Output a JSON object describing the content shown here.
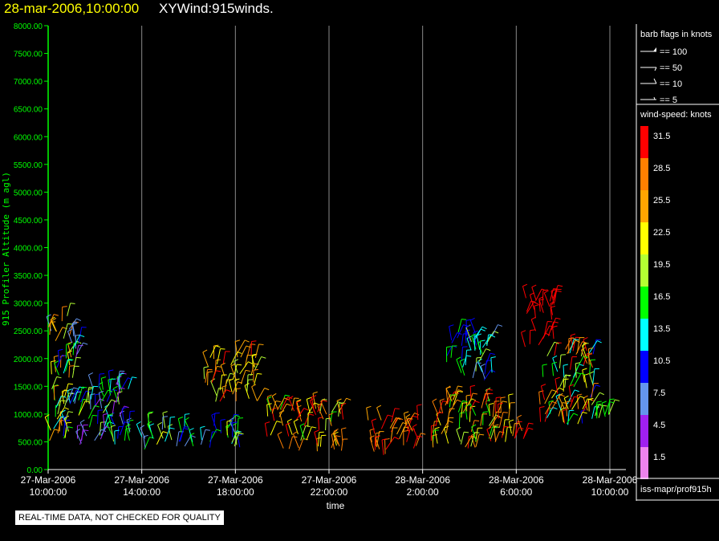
{
  "header": {
    "date_time": "28-mar-2006,10:00:00",
    "product": "XYWind:915winds."
  },
  "status_note": "REAL-TIME DATA, NOT CHECKED FOR QUALITY",
  "source_label": "iss-mapr/prof915h",
  "barb_legend": {
    "title": "barb flags in knots",
    "items": [
      "== 100",
      "== 50",
      "== 10",
      "== 5"
    ]
  },
  "speed_legend": {
    "title": "wind-speed: knots",
    "entries": [
      {
        "label": "31.5",
        "color": "#ff0000"
      },
      {
        "label": "28.5",
        "color": "#ff8000"
      },
      {
        "label": "25.5",
        "color": "#ffa500"
      },
      {
        "label": "22.5",
        "color": "#ffff00"
      },
      {
        "label": "19.5",
        "color": "#b4ff32"
      },
      {
        "label": "16.5",
        "color": "#00ff00"
      },
      {
        "label": "13.5",
        "color": "#00ffff"
      },
      {
        "label": "10.5",
        "color": "#0000ff"
      },
      {
        "label": "7.5",
        "color": "#6495ed"
      },
      {
        "label": "4.5",
        "color": "#a020f0"
      },
      {
        "label": "1.5",
        "color": "#ee82ee"
      }
    ]
  },
  "chart_data": {
    "type": "scatter",
    "title": "XYWind:915winds.",
    "xlabel": "time",
    "ylabel": "915 Profiler Altitude (m agl)",
    "ylim": [
      0,
      8000
    ],
    "xlim": [
      "27-Mar-2006 10:00:00",
      "28-Mar-2006 10:00:00"
    ],
    "yticks": [
      "0.00",
      "500.00",
      "1000.00",
      "1500.00",
      "2000.00",
      "2500.00",
      "3000.00",
      "3500.00",
      "4000.00",
      "4500.00",
      "5000.00",
      "5500.00",
      "6000.00",
      "6500.00",
      "7000.00",
      "7500.00",
      "8000.00"
    ],
    "xticks": [
      {
        "date": "27-Mar-2006",
        "time": "10:00:00"
      },
      {
        "date": "27-Mar-2006",
        "time": "14:00:00"
      },
      {
        "date": "27-Mar-2006",
        "time": "18:00:00"
      },
      {
        "date": "27-Mar-2006",
        "time": "22:00:00"
      },
      {
        "date": "28-Mar-2006",
        "time": "2:00:00"
      },
      {
        "date": "28-Mar-2006",
        "time": "6:00:00"
      },
      {
        "date": "28-Mar-2006",
        "time": "10:00:00"
      }
    ],
    "grid": "vertical",
    "legend_position": "right",
    "clusters": [
      {
        "t_start": "27-Mar-2006 10:00",
        "t_end": "27-Mar-2006 11:20",
        "alt_min": 500,
        "alt_max": 2800,
        "speed_min": 5,
        "speed_max": 30
      },
      {
        "t_start": "27-Mar-2006 11:20",
        "t_end": "27-Mar-2006 13:30",
        "alt_min": 400,
        "alt_max": 1600,
        "speed_min": 4,
        "speed_max": 20
      },
      {
        "t_start": "27-Mar-2006 14:00",
        "t_end": "27-Mar-2006 18:20",
        "alt_min": 350,
        "alt_max": 800,
        "speed_min": 6,
        "speed_max": 22
      },
      {
        "t_start": "27-Mar-2006 16:40",
        "t_end": "27-Mar-2006 19:00",
        "alt_min": 1200,
        "alt_max": 2100,
        "speed_min": 18,
        "speed_max": 31
      },
      {
        "t_start": "27-Mar-2006 19:20",
        "t_end": "27-Mar-2006 22:40",
        "alt_min": 300,
        "alt_max": 1100,
        "speed_min": 16,
        "speed_max": 33
      },
      {
        "t_start": "27-Mar-2006 23:40",
        "t_end": "28-Mar-2006 01:50",
        "alt_min": 250,
        "alt_max": 900,
        "speed_min": 24,
        "speed_max": 33
      },
      {
        "t_start": "28-Mar-2006 02:20",
        "t_end": "28-Mar-2006 05:00",
        "alt_min": 350,
        "alt_max": 1300,
        "speed_min": 16,
        "speed_max": 33
      },
      {
        "t_start": "28-Mar-2006 03:00",
        "t_end": "28-Mar-2006 05:00",
        "alt_min": 1600,
        "alt_max": 2500,
        "speed_min": 8,
        "speed_max": 20
      },
      {
        "t_start": "28-Mar-2006 05:00",
        "t_end": "28-Mar-2006 06:20",
        "alt_min": 400,
        "alt_max": 1100,
        "speed_min": 22,
        "speed_max": 33
      },
      {
        "t_start": "28-Mar-2006 06:20",
        "t_end": "28-Mar-2006 07:40",
        "alt_min": 2200,
        "alt_max": 3100,
        "speed_min": 30,
        "speed_max": 33
      },
      {
        "t_start": "28-Mar-2006 07:00",
        "t_end": "28-Mar-2006 09:20",
        "alt_min": 800,
        "alt_max": 2200,
        "speed_min": 10,
        "speed_max": 33
      },
      {
        "t_start": "28-Mar-2006 09:20",
        "t_end": "28-Mar-2006 10:00",
        "alt_min": 900,
        "alt_max": 1000,
        "speed_min": 16,
        "speed_max": 20
      }
    ]
  }
}
